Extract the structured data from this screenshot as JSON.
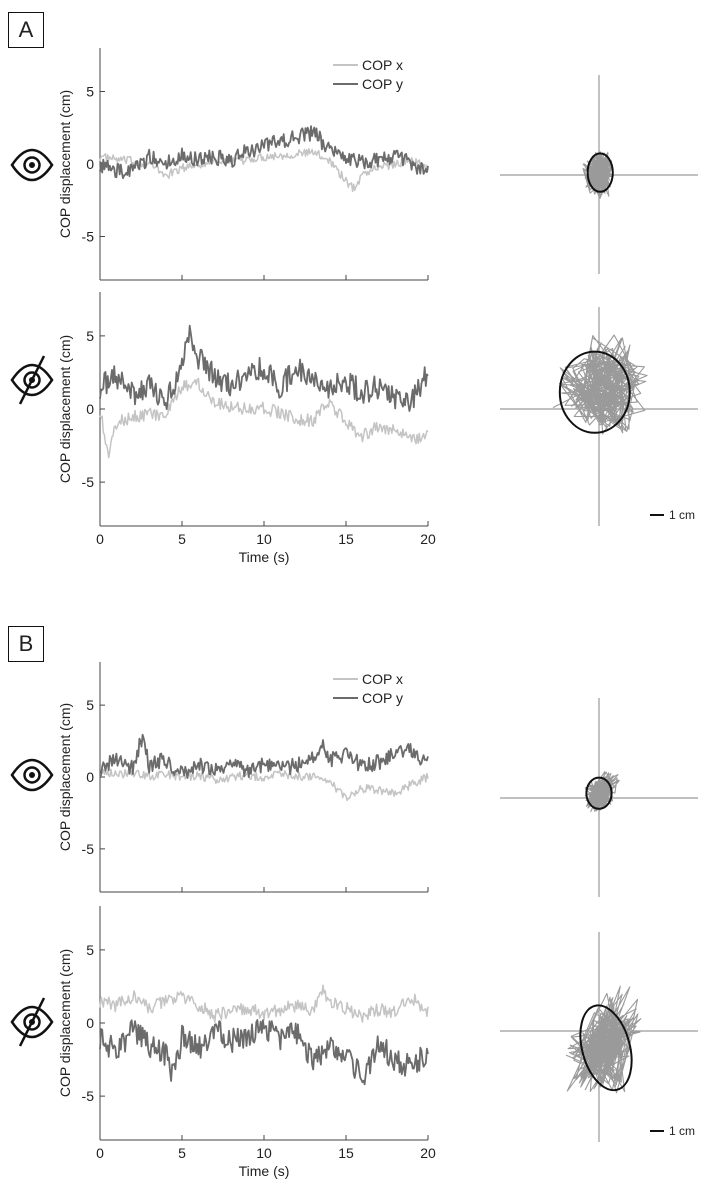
{
  "panels": [
    {
      "label": "A",
      "legend": [
        "COP x",
        "COP y"
      ],
      "scale_bar_label": "1 cm",
      "xlabel": "Time (s)",
      "ylabel": "COP displacement (cm)",
      "icons": [
        "eye-open-icon",
        "eye-closed-icon"
      ]
    },
    {
      "label": "B",
      "legend": [
        "COP x",
        "COP y"
      ],
      "scale_bar_label": "1 cm",
      "xlabel": "Time (s)",
      "ylabel": "COP displacement (cm)",
      "icons": [
        "eye-open-icon",
        "eye-closed-icon"
      ]
    }
  ],
  "colors": {
    "cop_x": "#c4c4c4",
    "cop_y": "#6b6b6b",
    "ellipse": "#111111",
    "cross": "#9a9a9a",
    "stabilogram": "#9a9a9a"
  },
  "chart_data": [
    {
      "type": "line",
      "panel": "A",
      "condition": "eyes open",
      "xlim": [
        0,
        20
      ],
      "ylim": [
        -8,
        8
      ],
      "xticks": [
        0,
        5,
        10,
        15,
        20
      ],
      "yticks": [
        -5,
        0,
        5
      ],
      "xlabel": "",
      "ylabel": "COP displacement (cm)",
      "legend": "top-right",
      "series": [
        {
          "name": "COP x",
          "color": "#c4c4c4",
          "x": [
            0,
            1,
            2,
            3,
            4,
            5,
            6,
            7,
            8,
            9,
            10,
            11,
            12,
            13,
            14,
            15,
            15.5,
            16,
            17,
            18,
            19,
            20
          ],
          "y": [
            0.5,
            0.3,
            0.2,
            0,
            -0.8,
            -0.3,
            0,
            0.2,
            0.1,
            0.3,
            0.5,
            0.6,
            0.7,
            0.8,
            0.3,
            -1.2,
            -1.7,
            -0.7,
            -0.2,
            0,
            0.3,
            -0.3
          ]
        },
        {
          "name": "COP y",
          "color": "#6b6b6b",
          "x": [
            0,
            1,
            2,
            3,
            4,
            5,
            6,
            7,
            8,
            9,
            10,
            11,
            12,
            13,
            14,
            15,
            16,
            17,
            18,
            19,
            20
          ],
          "y": [
            0,
            -0.5,
            -0.5,
            0.5,
            0,
            0.7,
            0.3,
            0.5,
            0.2,
            0.9,
            1.2,
            1.6,
            1.9,
            2.2,
            1,
            0.5,
            0.2,
            0.3,
            0.5,
            0,
            -0.5
          ]
        }
      ]
    },
    {
      "type": "line",
      "panel": "A",
      "condition": "eyes closed",
      "xlim": [
        0,
        20
      ],
      "ylim": [
        -8,
        8
      ],
      "xticks": [
        0,
        5,
        10,
        15,
        20
      ],
      "yticks": [
        -5,
        0,
        5
      ],
      "xlabel": "Time (s)",
      "ylabel": "COP displacement (cm)",
      "series": [
        {
          "name": "COP x",
          "color": "#c4c4c4",
          "x": [
            0,
            0.5,
            1,
            2,
            3,
            4,
            5,
            6,
            7,
            8,
            9,
            10,
            11,
            12,
            13,
            14,
            15,
            16,
            17,
            18,
            19,
            20
          ],
          "y": [
            0,
            -3.2,
            -1,
            -0.5,
            -0.3,
            -0.5,
            1.5,
            1.8,
            0.5,
            0.2,
            0,
            0.1,
            -0.3,
            -0.7,
            -0.8,
            0.5,
            -1,
            -1.8,
            -1.2,
            -1.5,
            -2,
            -1.8
          ]
        },
        {
          "name": "COP y",
          "color": "#6b6b6b",
          "x": [
            0,
            1,
            2,
            3,
            4,
            5,
            5.5,
            6,
            7,
            8,
            9,
            10,
            11,
            12,
            13,
            14,
            15,
            16,
            17,
            18,
            19,
            20
          ],
          "y": [
            1.5,
            2.2,
            1,
            1.5,
            0.5,
            2.8,
            5.2,
            3.5,
            2.2,
            1.5,
            2.5,
            2.8,
            1.5,
            2.8,
            2.2,
            1.5,
            1.8,
            1.2,
            1.5,
            0.8,
            0.5,
            2.5
          ]
        }
      ]
    },
    {
      "type": "scatter",
      "panel": "A",
      "condition": "eyes open",
      "description": "stabilogram",
      "ellipse": {
        "cx": 0.1,
        "cy": 0.2,
        "rx": 1.05,
        "ry": 1.6
      },
      "path_x": [
        -0.8,
        -0.3,
        0.2,
        0.5,
        0.3,
        -0.2,
        0.4,
        0.6,
        -0.5,
        0.1,
        0.3,
        -0.6,
        0,
        0.5,
        -0.2
      ],
      "path_y": [
        0.5,
        -0.4,
        0.8,
        -0.2,
        1.2,
        0.3,
        -0.7,
        0.6,
        0.1,
        1.4,
        -1,
        -0.3,
        0.9,
        0.2,
        -1.2
      ]
    },
    {
      "type": "scatter",
      "panel": "A",
      "condition": "eyes closed",
      "description": "stabilogram",
      "ellipse": {
        "cx": -0.3,
        "cy": 1.2,
        "rx": 2.5,
        "ry": 2.9
      },
      "path_x": [
        -2,
        -1,
        0.5,
        1.5,
        0.8,
        -0.5,
        1,
        2.2,
        0.3,
        -1.5,
        0.5,
        1.8,
        2.5,
        1.2,
        -0.8,
        0.2,
        1.5,
        0
      ],
      "path_y": [
        1.5,
        0,
        2.8,
        1.2,
        3.5,
        0.8,
        -0.5,
        2,
        4.2,
        1.8,
        0.2,
        3,
        1.5,
        -0.6,
        2.2,
        4.5,
        3.2,
        0.5
      ]
    },
    {
      "type": "line",
      "panel": "B",
      "condition": "eyes open",
      "xlim": [
        0,
        20
      ],
      "ylim": [
        -8,
        8
      ],
      "xticks": [
        0,
        5,
        10,
        15,
        20
      ],
      "yticks": [
        -5,
        0,
        5
      ],
      "xlabel": "",
      "ylabel": "COP displacement (cm)",
      "legend": "top-right",
      "series": [
        {
          "name": "COP x",
          "color": "#c4c4c4",
          "x": [
            0,
            1,
            2,
            3,
            4,
            5,
            6,
            7,
            8,
            9,
            10,
            11,
            12,
            13,
            14,
            15,
            16,
            17,
            18,
            19,
            20
          ],
          "y": [
            0.5,
            0.2,
            0.3,
            0,
            0.2,
            0,
            0.1,
            -0.2,
            0,
            0.1,
            0,
            0.2,
            0.1,
            0,
            -0.3,
            -1.5,
            -0.8,
            -0.9,
            -1.2,
            -0.5,
            0
          ]
        },
        {
          "name": "COP y",
          "color": "#6b6b6b",
          "x": [
            0,
            1,
            2,
            2.6,
            3,
            4,
            5,
            6,
            7,
            8,
            9,
            10,
            11,
            12,
            13,
            13.5,
            14,
            15,
            16,
            17,
            18,
            19,
            20
          ],
          "y": [
            0.5,
            1.2,
            0.6,
            2.9,
            0.8,
            1.2,
            0.2,
            0.8,
            0.4,
            0.9,
            0.3,
            1,
            0.5,
            0.8,
            1.3,
            2.5,
            1.2,
            1.5,
            0.8,
            1,
            1.6,
            1.8,
            1
          ]
        }
      ]
    },
    {
      "type": "line",
      "panel": "B",
      "condition": "eyes closed",
      "xlim": [
        0,
        20
      ],
      "ylim": [
        -8,
        8
      ],
      "xticks": [
        0,
        5,
        10,
        15,
        20
      ],
      "yticks": [
        -5,
        0,
        5
      ],
      "xlabel": "Time (s)",
      "ylabel": "COP displacement (cm)",
      "series": [
        {
          "name": "COP x",
          "color": "#c4c4c4",
          "x": [
            0,
            1,
            2,
            3,
            4,
            5,
            6,
            7,
            8,
            9,
            10,
            11,
            12,
            13,
            13.5,
            14,
            15,
            16,
            17,
            18,
            19,
            20
          ],
          "y": [
            1.5,
            1.2,
            1.8,
            1,
            1.5,
            1.8,
            1.2,
            0.5,
            0.8,
            1,
            0.6,
            0.9,
            1.2,
            0.8,
            2.3,
            1.5,
            1,
            0.5,
            0.9,
            0.7,
            1.8,
            0.8
          ]
        },
        {
          "name": "COP y",
          "color": "#6b6b6b",
          "x": [
            0,
            1,
            2,
            3,
            4,
            4.5,
            5,
            6,
            7,
            8,
            9,
            10,
            11,
            12,
            13,
            14,
            15,
            16,
            17,
            18,
            19,
            20
          ],
          "y": [
            -1,
            -2,
            -0.5,
            -1.5,
            -2.2,
            -3.7,
            -1,
            -1.8,
            -0.5,
            -1.2,
            -0.8,
            -0.3,
            -1,
            -0.7,
            -2.5,
            -1.5,
            -2,
            -3.8,
            -1.5,
            -2.5,
            -3,
            -2
          ]
        }
      ]
    },
    {
      "type": "scatter",
      "panel": "B",
      "condition": "eyes open",
      "description": "stabilogram",
      "ellipse": {
        "cx": 0,
        "cy": 0.4,
        "rx": 1.05,
        "ry": 1.3
      },
      "path_x": [
        -0.6,
        0.2,
        0.5,
        -0.3,
        0.4,
        -0.5,
        0.1,
        0.6,
        -0.2,
        0.3,
        1.2,
        0.8,
        -0.4,
        0.2
      ],
      "path_y": [
        0.3,
        0.8,
        -0.2,
        1,
        0.1,
        -0.4,
        1.2,
        0.5,
        -0.6,
        0.7,
        1.8,
        1,
        0.2,
        -0.3
      ]
    },
    {
      "type": "scatter",
      "panel": "B",
      "condition": "eyes closed",
      "description": "stabilogram",
      "ellipse": {
        "cx": 0.5,
        "cy": -1.2,
        "rx": 1.7,
        "ry": 3.1,
        "rotation": -15
      },
      "path_x": [
        -1.5,
        0,
        1.2,
        -0.5,
        1.8,
        0.5,
        -1,
        1,
        2,
        0.2,
        -1.2,
        0.8,
        1.5,
        -0.3,
        2.2,
        0.6
      ],
      "path_y": [
        -3,
        -1.5,
        0.5,
        -2.8,
        -0.5,
        1.2,
        -2,
        -3.5,
        0.8,
        -1,
        -1.8,
        -3,
        -0.2,
        -2.5,
        1.8,
        -1.2
      ]
    }
  ]
}
